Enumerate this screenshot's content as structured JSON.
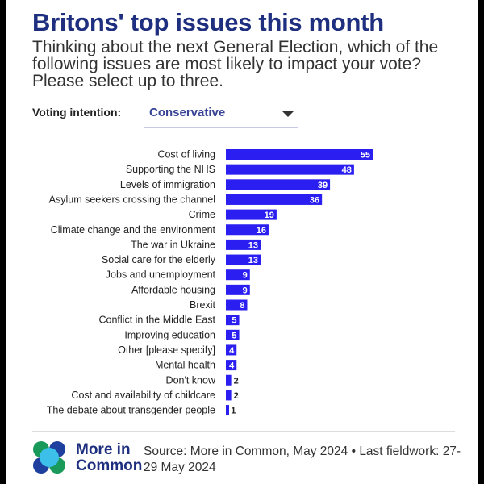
{
  "title": "Britons' top issues this month",
  "subtitle": "Thinking about the next General Election, which of the following issues are most likely to impact your vote? Please select up to three.",
  "filter": {
    "label": "Voting intention:",
    "value": "Conservative"
  },
  "chart_data": {
    "type": "bar",
    "orientation": "horizontal",
    "categories": [
      "Cost of living",
      "Supporting the NHS",
      "Levels of immigration",
      "Asylum seekers crossing the channel",
      "Crime",
      "Climate change and the environment",
      "The war in Ukraine",
      "Social care for the elderly",
      "Jobs and unemployment",
      "Affordable housing",
      "Brexit",
      "Conflict in the Middle East",
      "Improving education",
      "Other [please specify]",
      "Mental health",
      "Don't know",
      "Cost and availability of childcare",
      "The debate about transgender people"
    ],
    "values": [
      55,
      48,
      39,
      36,
      19,
      16,
      13,
      13,
      9,
      9,
      8,
      5,
      5,
      4,
      4,
      2,
      2,
      1
    ],
    "bar_color": "#2a1ff0",
    "grid": false
  },
  "footer": {
    "logo_text": [
      "More in",
      "Common"
    ],
    "source": "Source: More in Common, May 2024 • Last fieldwork: 27-29 May 2024"
  }
}
